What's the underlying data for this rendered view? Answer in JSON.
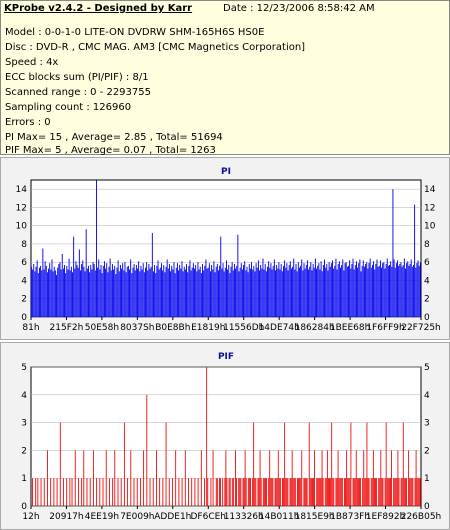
{
  "header": {
    "title": "KProbe v2.4.2 - Designed by Karr",
    "date": "Date : 12/23/2006 8:58:42 AM"
  },
  "info_lines": [
    "Model : 0-0-1-0 LITE-ON DVDRW SHM-165H6S HS0E",
    "Disc : DVD-R , CMC MAG. AM3 [CMC Magnetics Corporation]",
    "Speed : 4x",
    "ECC blocks sum (PI/PIF) : 8/1",
    "Scanned range : 0 - 2293755",
    "Sampling count : 126960",
    "Errors : 0",
    "PI Max= 15 , Average= 2.85 , Total= 51694",
    "PIF Max= 5 , Average= 0.07 , Total= 1263"
  ],
  "colors": {
    "pi": "#0000ee",
    "pif": "#ee0000",
    "background": "#ffffe0",
    "plot_bg": "#ffffff"
  },
  "chart_data": [
    {
      "type": "bar",
      "title": "PI",
      "ylim": [
        0,
        15
      ],
      "yticks": [
        0,
        2,
        4,
        6,
        8,
        10,
        12,
        14
      ],
      "xticks": [
        "81h",
        "215F2h",
        "50E58h",
        "8037Sh",
        "B0E8Bh",
        "E1819h",
        "11556Dh",
        "14DE74h",
        "186284h",
        "1BEE68h",
        "1F6FF9h",
        "22F725h"
      ],
      "values": [
        5.5,
        5.2,
        5.8,
        5.0,
        5.5,
        6.2,
        4.8,
        5.4,
        5.6,
        5.1,
        7.5,
        5.2,
        6.1,
        5.6,
        4.9,
        5.3,
        5.9,
        5.2,
        6.3,
        5.0,
        5.5,
        5.1,
        4.6,
        5.4,
        5.8,
        6.0,
        5.2,
        6.9,
        5.3,
        5.7,
        4.8,
        5.6,
        5.2,
        6.4,
        5.1,
        5.5,
        4.9,
        8.8,
        5.3,
        6.1,
        5.7,
        5.4,
        7.4,
        5.1,
        5.8,
        6.2,
        5.5,
        5.0,
        9.6,
        5.3,
        5.6,
        4.9,
        5.7,
        5.2,
        6.0,
        5.8,
        5.1,
        15.0,
        5.4,
        6.3,
        5.2,
        5.7,
        4.8,
        5.6,
        6.1,
        5.3,
        5.9,
        4.9,
        5.5,
        6.4,
        5.1,
        5.8,
        5.2,
        5.6,
        4.7,
        5.4,
        6.2,
        5.0,
        5.7,
        5.3,
        5.9,
        5.1,
        6.0,
        4.9,
        5.5,
        5.6,
        5.2,
        6.3,
        4.8,
        5.4,
        5.8,
        5.1,
        5.7,
        5.3,
        6.1,
        5.0,
        5.6,
        5.2,
        5.9,
        4.9,
        5.4,
        6.0,
        5.1,
        5.8,
        5.3,
        5.5,
        9.2,
        5.0,
        5.7,
        4.8,
        5.6,
        6.2,
        5.2,
        5.4,
        5.9,
        5.1,
        5.7,
        4.9,
        5.5,
        6.3,
        5.3,
        5.8,
        5.0,
        5.6,
        5.2,
        6.0,
        4.8,
        5.4,
        5.9,
        5.1,
        5.7,
        5.3,
        6.1,
        5.0,
        5.5,
        5.2,
        5.8,
        4.9,
        5.6,
        6.2,
        5.1,
        5.4,
        5.9,
        5.3,
        5.7,
        5.0,
        6.0,
        5.2,
        5.5,
        4.8,
        5.8,
        5.1,
        5.6,
        6.3,
        5.3,
        5.4,
        5.9,
        5.0,
        5.7,
        5.2,
        6.1,
        4.9,
        5.5,
        5.8,
        5.1,
        5.6,
        8.8,
        5.3,
        5.9,
        5.0,
        5.4,
        6.2,
        5.2,
        5.7,
        4.8,
        5.5,
        6.0,
        5.1,
        5.8,
        5.3,
        5.6,
        9.0,
        5.0,
        5.4,
        5.9,
        5.2,
        5.7,
        6.1,
        5.1,
        5.5,
        4.9,
        5.8,
        5.3,
        6.0,
        5.2,
        5.6,
        5.0,
        5.9,
        5.4,
        6.2,
        5.1,
        5.7,
        5.3,
        6.4,
        5.2,
        5.8,
        5.0,
        5.5,
        6.1,
        5.4,
        5.9,
        5.2,
        5.6,
        6.3,
        5.1,
        5.7,
        5.3,
        6.0,
        5.2,
        5.8,
        5.0,
        5.6,
        6.2,
        5.4,
        5.9,
        5.1,
        5.7,
        6.1,
        5.3,
        5.5,
        6.4,
        5.2,
        5.8,
        5.0,
        6.0,
        5.4,
        5.6,
        6.3,
        5.1,
        5.9,
        5.3,
        5.7,
        6.2,
        5.2,
        5.5,
        6.0,
        5.1,
        5.8,
        5.4,
        6.4,
        5.3,
        5.6,
        5.9,
        5.2,
        6.1,
        5.0,
        5.7,
        6.3,
        5.4,
        5.8,
        5.1,
        6.0,
        5.5,
        5.9,
        6.2,
        5.3,
        5.6,
        6.4,
        5.2,
        5.8,
        6.1,
        5.4,
        5.7,
        6.3,
        5.1,
        5.9,
        6.0,
        5.5,
        5.6,
        6.2,
        5.3,
        5.8,
        6.4,
        5.2,
        5.7,
        6.1,
        5.4,
        5.9,
        6.3,
        5.0,
        5.6,
        6.2,
        5.5,
        5.8,
        6.0,
        5.3,
        5.9,
        6.4,
        5.4,
        5.7,
        6.1,
        5.2,
        5.8,
        6.3,
        5.5,
        5.6,
        6.2,
        5.4,
        5.9,
        6.0,
        5.3,
        5.8,
        6.4,
        5.6,
        5.7,
        6.1,
        5.5,
        14.0,
        6.3,
        5.4,
        5.9,
        6.2,
        5.6,
        5.8,
        6.0,
        5.5,
        5.7,
        6.4,
        5.3,
        5.9,
        6.1,
        5.6,
        5.8,
        6.3,
        5.5,
        5.7,
        12.3,
        5.4,
        5.9,
        6.2,
        5.6,
        6.0
      ]
    },
    {
      "type": "bar",
      "title": "PIF",
      "ylim": [
        0,
        5
      ],
      "yticks": [
        0,
        1,
        2,
        3,
        4,
        5
      ],
      "xticks": [
        "12h",
        "20917h",
        "4EE19h",
        "7E009h",
        "ADDE1h",
        "DF6CEh",
        "113326h",
        "14B011h",
        "1815E9h",
        "1B873Fh",
        "1EF892h",
        "226B05h"
      ],
      "values": [
        0,
        1,
        0,
        0,
        1,
        0,
        1,
        0,
        0,
        1,
        0,
        0,
        1,
        0,
        0,
        2,
        0,
        0,
        1,
        0,
        0,
        1,
        0,
        0,
        1,
        0,
        0,
        3,
        0,
        0,
        1,
        0,
        0,
        1,
        0,
        0,
        1,
        0,
        1,
        0,
        0,
        2,
        0,
        0,
        1,
        0,
        0,
        1,
        0,
        2,
        0,
        0,
        1,
        0,
        0,
        1,
        0,
        0,
        2,
        0,
        0,
        1,
        0,
        0,
        1,
        0,
        0,
        1,
        0,
        0,
        2,
        0,
        0,
        1,
        0,
        0,
        1,
        0,
        2,
        0,
        0,
        1,
        0,
        0,
        1,
        0,
        0,
        3,
        0,
        0,
        1,
        0,
        0,
        2,
        0,
        0,
        1,
        0,
        0,
        1,
        0,
        0,
        1,
        0,
        0,
        2,
        0,
        0,
        4,
        0,
        0,
        1,
        0,
        0,
        1,
        0,
        0,
        2,
        0,
        0,
        1,
        0,
        0,
        1,
        0,
        0,
        3,
        0,
        0,
        1,
        0,
        0,
        1,
        0,
        0,
        2,
        0,
        0,
        1,
        0,
        0,
        1,
        0,
        0,
        2,
        0,
        0,
        1,
        0,
        0,
        1,
        0,
        0,
        1,
        0,
        0,
        1,
        0,
        0,
        2,
        0,
        0,
        1,
        0,
        5,
        1,
        0,
        0,
        1,
        0,
        2,
        0,
        0,
        1,
        1,
        0,
        1,
        1,
        0,
        1,
        0,
        1,
        2,
        1,
        0,
        1,
        1,
        0,
        1,
        1,
        0,
        2,
        1,
        0,
        1,
        1,
        1,
        0,
        1,
        1,
        2,
        1,
        0,
        1,
        1,
        1,
        0,
        1,
        3,
        1,
        1,
        0,
        1,
        1,
        2,
        1,
        0,
        1,
        1,
        1,
        1,
        0,
        1,
        2,
        1,
        1,
        1,
        0,
        1,
        1,
        1,
        2,
        1,
        1,
        0,
        1,
        1,
        3,
        1,
        1,
        1,
        0,
        1,
        1,
        2,
        1,
        1,
        1,
        0,
        1,
        1,
        1,
        1,
        2,
        0,
        1,
        1,
        1,
        1,
        0,
        3,
        1,
        1,
        1,
        1,
        2,
        0,
        1,
        1,
        1,
        1,
        1,
        2,
        1,
        0,
        1,
        1,
        2,
        1,
        1,
        1,
        3,
        1,
        1,
        0,
        1,
        1,
        2,
        1,
        1,
        1,
        1,
        0,
        1,
        1,
        2,
        1,
        1,
        1,
        3,
        0,
        1,
        1,
        1,
        2,
        1,
        1,
        1,
        1,
        0,
        1,
        2,
        1,
        1,
        3,
        1,
        1,
        0,
        1,
        1,
        2,
        1,
        1,
        1,
        0,
        1,
        1,
        2,
        1,
        1,
        0,
        1,
        3,
        1,
        1,
        1,
        1,
        2,
        0,
        1,
        1,
        1,
        1,
        2,
        1,
        0,
        1,
        1,
        3,
        1,
        1,
        1,
        0,
        2,
        1,
        1,
        1,
        1,
        0,
        1,
        2,
        1,
        1,
        1,
        1
      ]
    }
  ]
}
